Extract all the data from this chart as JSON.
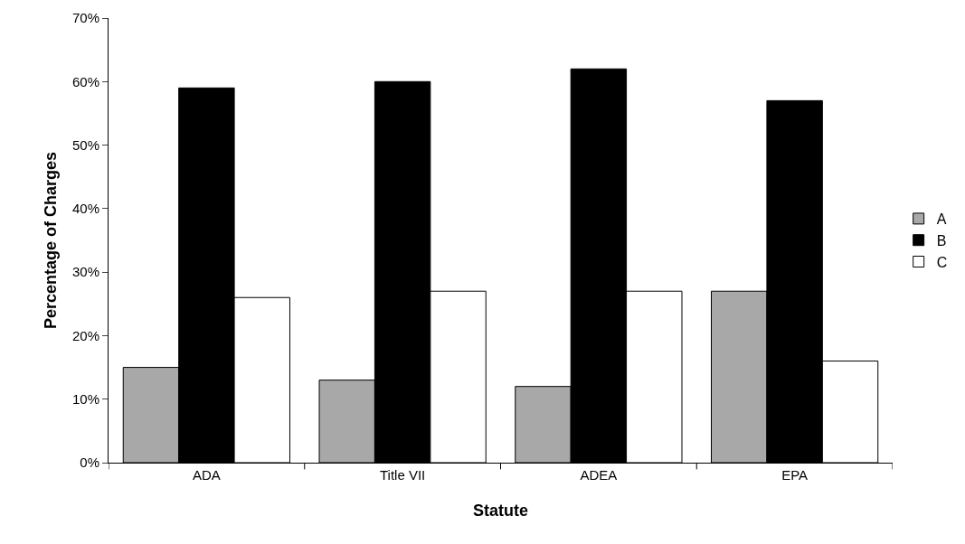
{
  "chart_data": {
    "type": "bar",
    "xlabel": "Statute",
    "ylabel": "Percentage of Charges",
    "categories": [
      "ADA",
      "Title VII",
      "ADEA",
      "EPA"
    ],
    "series": [
      {
        "name": "A",
        "color": "#a8a8a8",
        "values": [
          15,
          13,
          12,
          27
        ]
      },
      {
        "name": "B",
        "color": "#000000",
        "values": [
          59,
          60,
          62,
          57
        ]
      },
      {
        "name": "C",
        "color": "#ffffff",
        "values": [
          26,
          27,
          27,
          16
        ]
      }
    ],
    "ylim": [
      0,
      70
    ],
    "yticks": [
      {
        "value": 0,
        "label": "0%"
      },
      {
        "value": 10,
        "label": "10%"
      },
      {
        "value": 20,
        "label": "20%"
      },
      {
        "value": 30,
        "label": "30%"
      },
      {
        "value": 40,
        "label": "40%"
      },
      {
        "value": 50,
        "label": "50%"
      },
      {
        "value": 60,
        "label": "60%"
      },
      {
        "value": 70,
        "label": "70%"
      }
    ],
    "grid": false,
    "legend": "right"
  }
}
